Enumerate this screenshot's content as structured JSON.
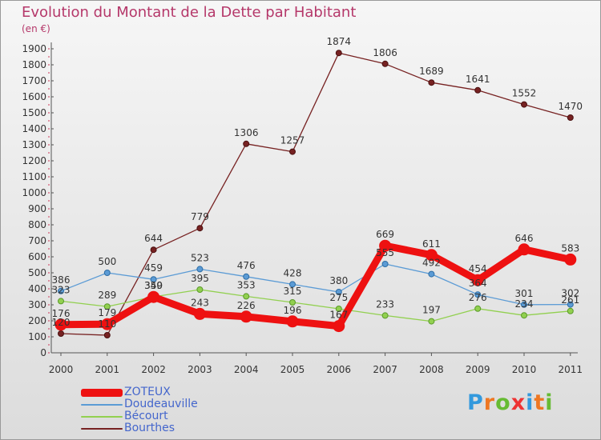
{
  "chart_data": {
    "type": "line",
    "title": "Evolution du Montant de la Dette par Habitant",
    "subtitle": "(en €)",
    "categories": [
      "2000",
      "2001",
      "2002",
      "2003",
      "2004",
      "2005",
      "2006",
      "2007",
      "2008",
      "2009",
      "2010",
      "2011"
    ],
    "ylim": [
      0,
      1900
    ],
    "yticks": [
      0,
      100,
      200,
      300,
      400,
      500,
      600,
      700,
      800,
      900,
      1000,
      1100,
      1200,
      1300,
      1400,
      1500,
      1600,
      1700,
      1800,
      1900
    ],
    "grid": false,
    "legend_position": "bottom-left",
    "series": [
      {
        "name": "ZOTEUX",
        "color": "#ee1111",
        "values": [
          176,
          179,
          349,
          243,
          226,
          196,
          167,
          669,
          611,
          454,
          646,
          583
        ]
      },
      {
        "name": "Doudeauville",
        "color": "#5b9bd5",
        "values": [
          386,
          500,
          459,
          523,
          476,
          428,
          380,
          555,
          492,
          364,
          301,
          302
        ]
      },
      {
        "name": "Bécourt",
        "color": "#92d050",
        "values": [
          323,
          289,
          350,
          395,
          353,
          315,
          275,
          233,
          197,
          276,
          234,
          261
        ]
      },
      {
        "name": "Bourthes",
        "color": "#772222",
        "values": [
          120,
          110,
          644,
          779,
          1306,
          1257,
          1874,
          1806,
          1689,
          1641,
          1552,
          1470
        ]
      }
    ]
  },
  "logo": {
    "letters": [
      "P",
      "r",
      "o",
      "x",
      "i",
      "t",
      "i"
    ],
    "colors": [
      "#3399dd",
      "#ee7722",
      "#66bb33",
      "#ee3333",
      "#3399dd",
      "#ee7722",
      "#66bb33"
    ]
  }
}
